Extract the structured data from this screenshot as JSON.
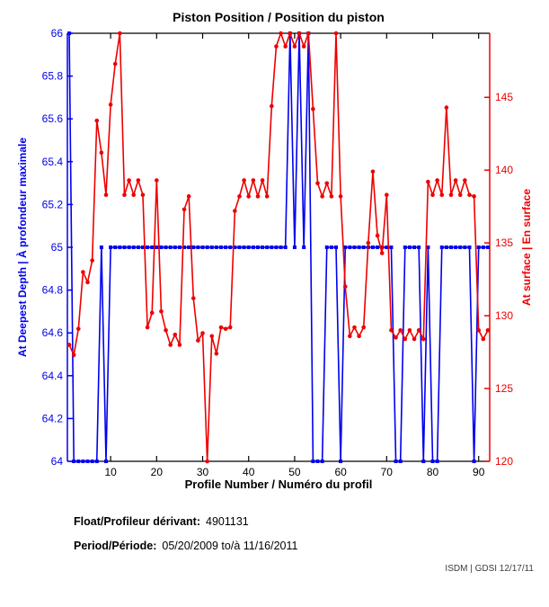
{
  "title": "Piston Position / Position du piston",
  "footer": {
    "float_label": "Float/Profileur dérivant:",
    "float_value": "4901131",
    "period_label": "Period/Période:",
    "period_value": "05/20/2009  to/à  11/16/2011",
    "credit": "ISDM | GDSI 12/17/11"
  },
  "chart_data": {
    "type": "line",
    "title": "Piston Position / Position du piston",
    "xlabel": "Profile Number / Numéro du profil",
    "ylabel_left": "At Deepest Depth | À profondeur maximale",
    "ylabel_right": "At surface | En surface",
    "grid": false,
    "legend_position": "none",
    "colors": {
      "left_series": "#0000ee",
      "right_series": "#ee0000",
      "axis_box": "#000000"
    },
    "x_axis": {
      "min": 0.6,
      "max": 92.4,
      "ticks": [
        10,
        20,
        30,
        40,
        50,
        60,
        70,
        80,
        90
      ]
    },
    "left_axis": {
      "min": 64,
      "max": 66,
      "ticks": [
        64,
        64.2,
        64.4,
        64.6,
        64.8,
        65,
        65.2,
        65.4,
        65.6,
        65.8,
        66
      ]
    },
    "right_axis": {
      "min": 120,
      "max": 149.4,
      "ticks": [
        120,
        125,
        130,
        135,
        140,
        145
      ]
    },
    "x": [
      1,
      2,
      3,
      4,
      5,
      6,
      7,
      8,
      9,
      10,
      11,
      12,
      13,
      14,
      15,
      16,
      17,
      18,
      19,
      20,
      21,
      22,
      23,
      24,
      25,
      26,
      27,
      28,
      29,
      30,
      31,
      32,
      33,
      34,
      35,
      36,
      37,
      38,
      39,
      40,
      41,
      42,
      43,
      44,
      45,
      46,
      47,
      48,
      49,
      50,
      51,
      52,
      53,
      54,
      55,
      56,
      57,
      58,
      59,
      60,
      61,
      62,
      63,
      64,
      65,
      66,
      67,
      68,
      69,
      70,
      71,
      72,
      73,
      74,
      75,
      76,
      77,
      78,
      79,
      80,
      81,
      82,
      83,
      84,
      85,
      86,
      87,
      88,
      89,
      90,
      91,
      92
    ],
    "series": [
      {
        "name": "At Deepest Depth | À profondeur maximale",
        "axis": "left",
        "color": "#0000ee",
        "marker": "square",
        "values": [
          66,
          64,
          64,
          64,
          64,
          64,
          64,
          65,
          64,
          65,
          65,
          65,
          65,
          65,
          65,
          65,
          65,
          65,
          65,
          65,
          65,
          65,
          65,
          65,
          65,
          65,
          65,
          65,
          65,
          65,
          65,
          65,
          65,
          65,
          65,
          65,
          65,
          65,
          65,
          65,
          65,
          65,
          65,
          65,
          65,
          65,
          65,
          65,
          66,
          65,
          66,
          65,
          66,
          64,
          64,
          64,
          65,
          65,
          65,
          64,
          65,
          65,
          65,
          65,
          65,
          65,
          65,
          65,
          65,
          65,
          65,
          64,
          64,
          65,
          65,
          65,
          65,
          64,
          65,
          64,
          64,
          65,
          65,
          65,
          65,
          65,
          65,
          65,
          64,
          65,
          65,
          65
        ]
      },
      {
        "name": "At surface | En surface",
        "axis": "right",
        "color": "#ee0000",
        "marker": "circle",
        "values": [
          128.0,
          127.3,
          129.1,
          133.0,
          132.3,
          133.8,
          143.4,
          141.2,
          138.3,
          144.5,
          147.3,
          149.4,
          138.3,
          139.3,
          138.3,
          139.3,
          138.3,
          129.2,
          130.2,
          139.3,
          130.3,
          129.0,
          128.0,
          128.7,
          128.0,
          137.3,
          138.2,
          131.2,
          128.3,
          128.8,
          120.0,
          128.6,
          127.4,
          129.2,
          129.1,
          129.2,
          137.2,
          138.2,
          139.3,
          138.2,
          139.3,
          138.2,
          139.3,
          138.2,
          144.4,
          148.5,
          149.4,
          148.5,
          149.4,
          148.5,
          149.4,
          148.5,
          149.4,
          144.2,
          139.1,
          138.2,
          139.1,
          138.2,
          149.4,
          138.2,
          132.0,
          128.6,
          129.2,
          128.6,
          129.2,
          135.0,
          139.9,
          135.5,
          134.3,
          138.3,
          129.0,
          128.5,
          129.0,
          128.4,
          129.0,
          128.4,
          129.0,
          128.4,
          139.2,
          138.3,
          139.3,
          138.3,
          144.3,
          138.3,
          139.3,
          138.3,
          139.3,
          138.3,
          138.2,
          129.0,
          128.4,
          129.0
        ]
      }
    ]
  }
}
